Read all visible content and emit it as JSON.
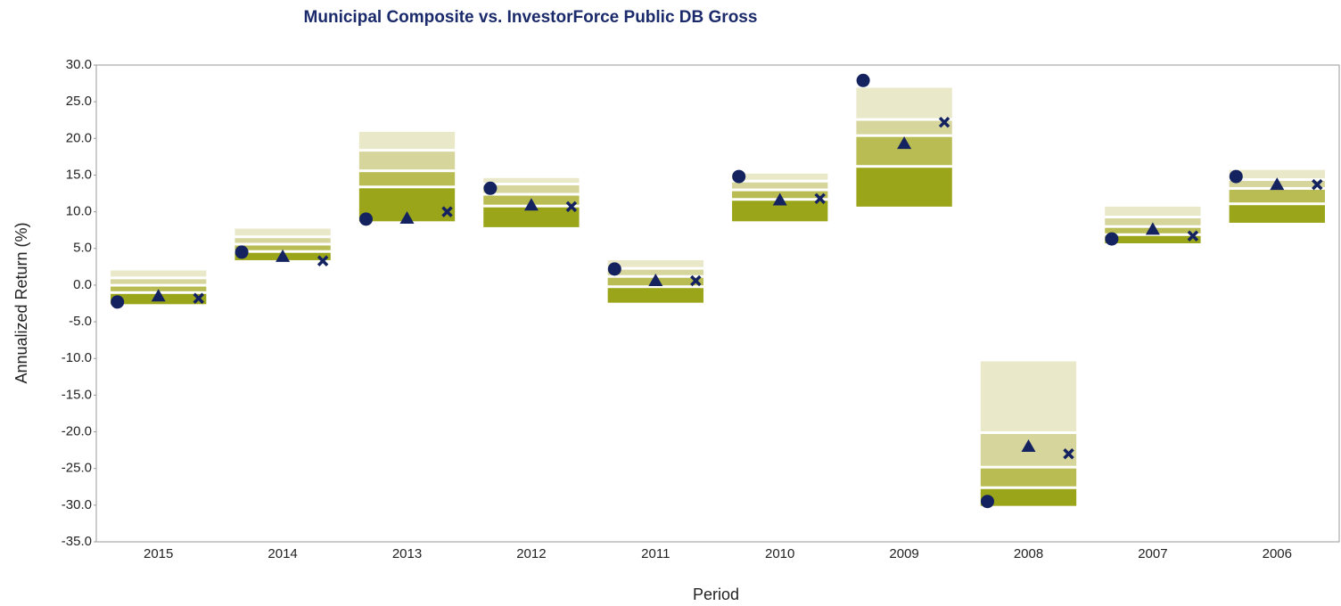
{
  "chart_data": {
    "type": "floating_band",
    "title": "Municipal Composite vs. InvestorForce Public DB Gross",
    "x_label": "Period",
    "y_label": "Annualized Return (%)",
    "categories": [
      "2015",
      "2014",
      "2013",
      "2012",
      "2011",
      "2010",
      "2009",
      "2008",
      "2007",
      "2006"
    ],
    "band_edges": [
      [
        2.0,
        0.8,
        -0.2,
        -1.2,
        -2.6
      ],
      [
        7.7,
        6.4,
        5.4,
        4.4,
        3.4
      ],
      [
        20.9,
        18.2,
        15.4,
        13.2,
        8.7
      ],
      [
        14.6,
        13.6,
        12.2,
        10.6,
        7.9
      ],
      [
        3.4,
        2.1,
        1.0,
        -0.4,
        -2.4
      ],
      [
        15.2,
        14.0,
        12.8,
        11.5,
        8.7
      ],
      [
        26.9,
        22.4,
        20.2,
        16.0,
        10.7
      ],
      [
        -10.4,
        -20.3,
        -25.0,
        -27.8,
        -30.1
      ],
      [
        10.7,
        9.1,
        7.8,
        6.7,
        5.7
      ],
      [
        15.7,
        14.2,
        13.0,
        10.9,
        8.5
      ]
    ],
    "band_colors": [
      "#e9e8c8",
      "#d6d59c",
      "#b9bc52",
      "#9ba51a"
    ],
    "markers": [
      {
        "shape": "circle",
        "color": "#142260",
        "values": [
          -2.3,
          4.5,
          9.0,
          13.2,
          2.2,
          14.8,
          27.9,
          -29.5,
          6.3,
          14.8
        ]
      },
      {
        "shape": "triangle",
        "color": "#142260",
        "values": [
          -1.5,
          3.9,
          9.1,
          10.9,
          0.6,
          11.6,
          19.3,
          -22.0,
          7.6,
          13.7
        ]
      },
      {
        "shape": "cross",
        "color": "#142260",
        "values": [
          -1.8,
          3.3,
          10.0,
          10.7,
          0.6,
          11.8,
          22.2,
          -23.0,
          6.7,
          13.7
        ]
      }
    ],
    "ylim": [
      -35,
      30
    ],
    "yticks": [
      {
        "value": -35,
        "label": "-35.0"
      },
      {
        "value": -30,
        "label": "-30.0"
      },
      {
        "value": -25,
        "label": "-25.0"
      },
      {
        "value": -20,
        "label": "-20.0"
      },
      {
        "value": -15,
        "label": "-15.0"
      },
      {
        "value": -10,
        "label": "-10.0"
      },
      {
        "value": -5,
        "label": "-5.0"
      },
      {
        "value": 0,
        "label": "0.0"
      },
      {
        "value": 5,
        "label": "5.0"
      },
      {
        "value": 10,
        "label": "10.0"
      },
      {
        "value": 15,
        "label": "15.0"
      },
      {
        "value": 20,
        "label": "20.0"
      },
      {
        "value": 25,
        "label": "25.0"
      },
      {
        "value": 30,
        "label": "30.0"
      }
    ]
  }
}
